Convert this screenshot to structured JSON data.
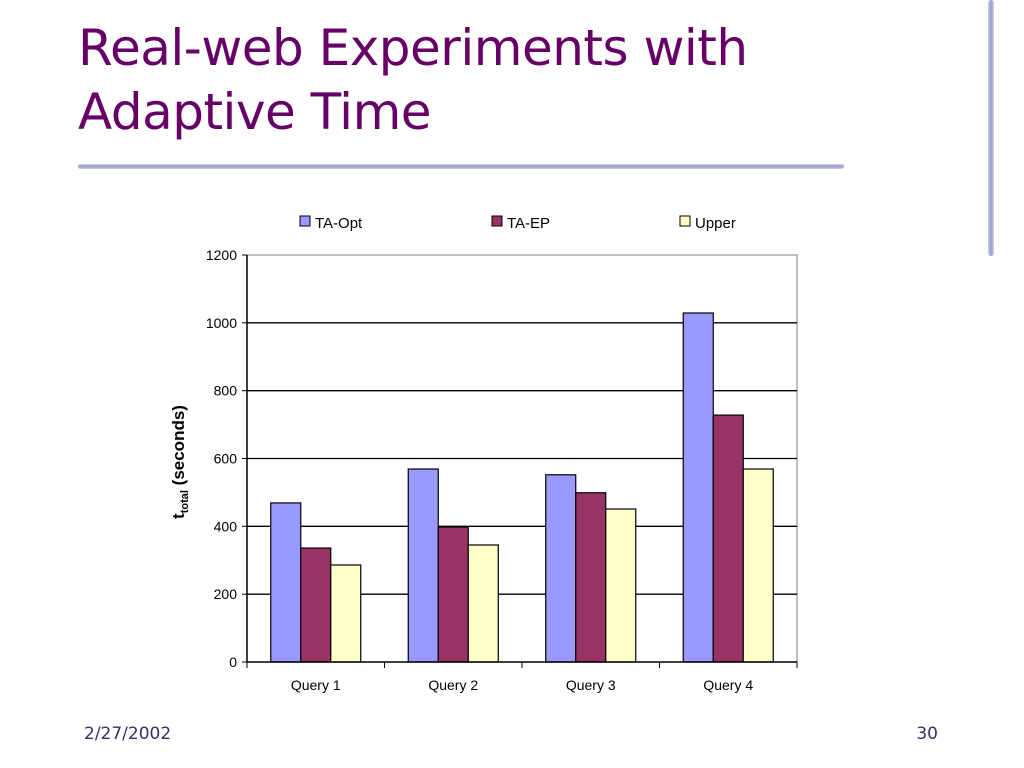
{
  "slide": {
    "title_line1": "Real-web Experiments with",
    "title_line2": "Adaptive Time",
    "date": "2/27/2002",
    "page_number": "30"
  },
  "colors": {
    "title": "#660066",
    "ta_opt": "#9999ff",
    "ta_ep": "#993366",
    "upper": "#ffffcc"
  },
  "chart_data": {
    "type": "bar",
    "title": "",
    "xlabel": "",
    "ylabel_main": "t",
    "ylabel_sub": "total",
    "ylabel_suffix": " (seconds)",
    "categories": [
      "Query 1",
      "Query 2",
      "Query 3",
      "Query 4"
    ],
    "series": [
      {
        "name": "TA-Opt",
        "color": "#9999ff",
        "values": [
          469,
          569,
          552,
          1029
        ]
      },
      {
        "name": "TA-EP",
        "color": "#993366",
        "values": [
          336,
          398,
          499,
          728
        ]
      },
      {
        "name": "Upper",
        "color": "#ffffcc",
        "values": [
          286,
          345,
          451,
          569
        ]
      }
    ],
    "ylim": [
      0,
      1200
    ],
    "yticks": [
      "0",
      "200",
      "400",
      "600",
      "800",
      "1000",
      "1200"
    ],
    "grid": true,
    "legend": "top"
  }
}
